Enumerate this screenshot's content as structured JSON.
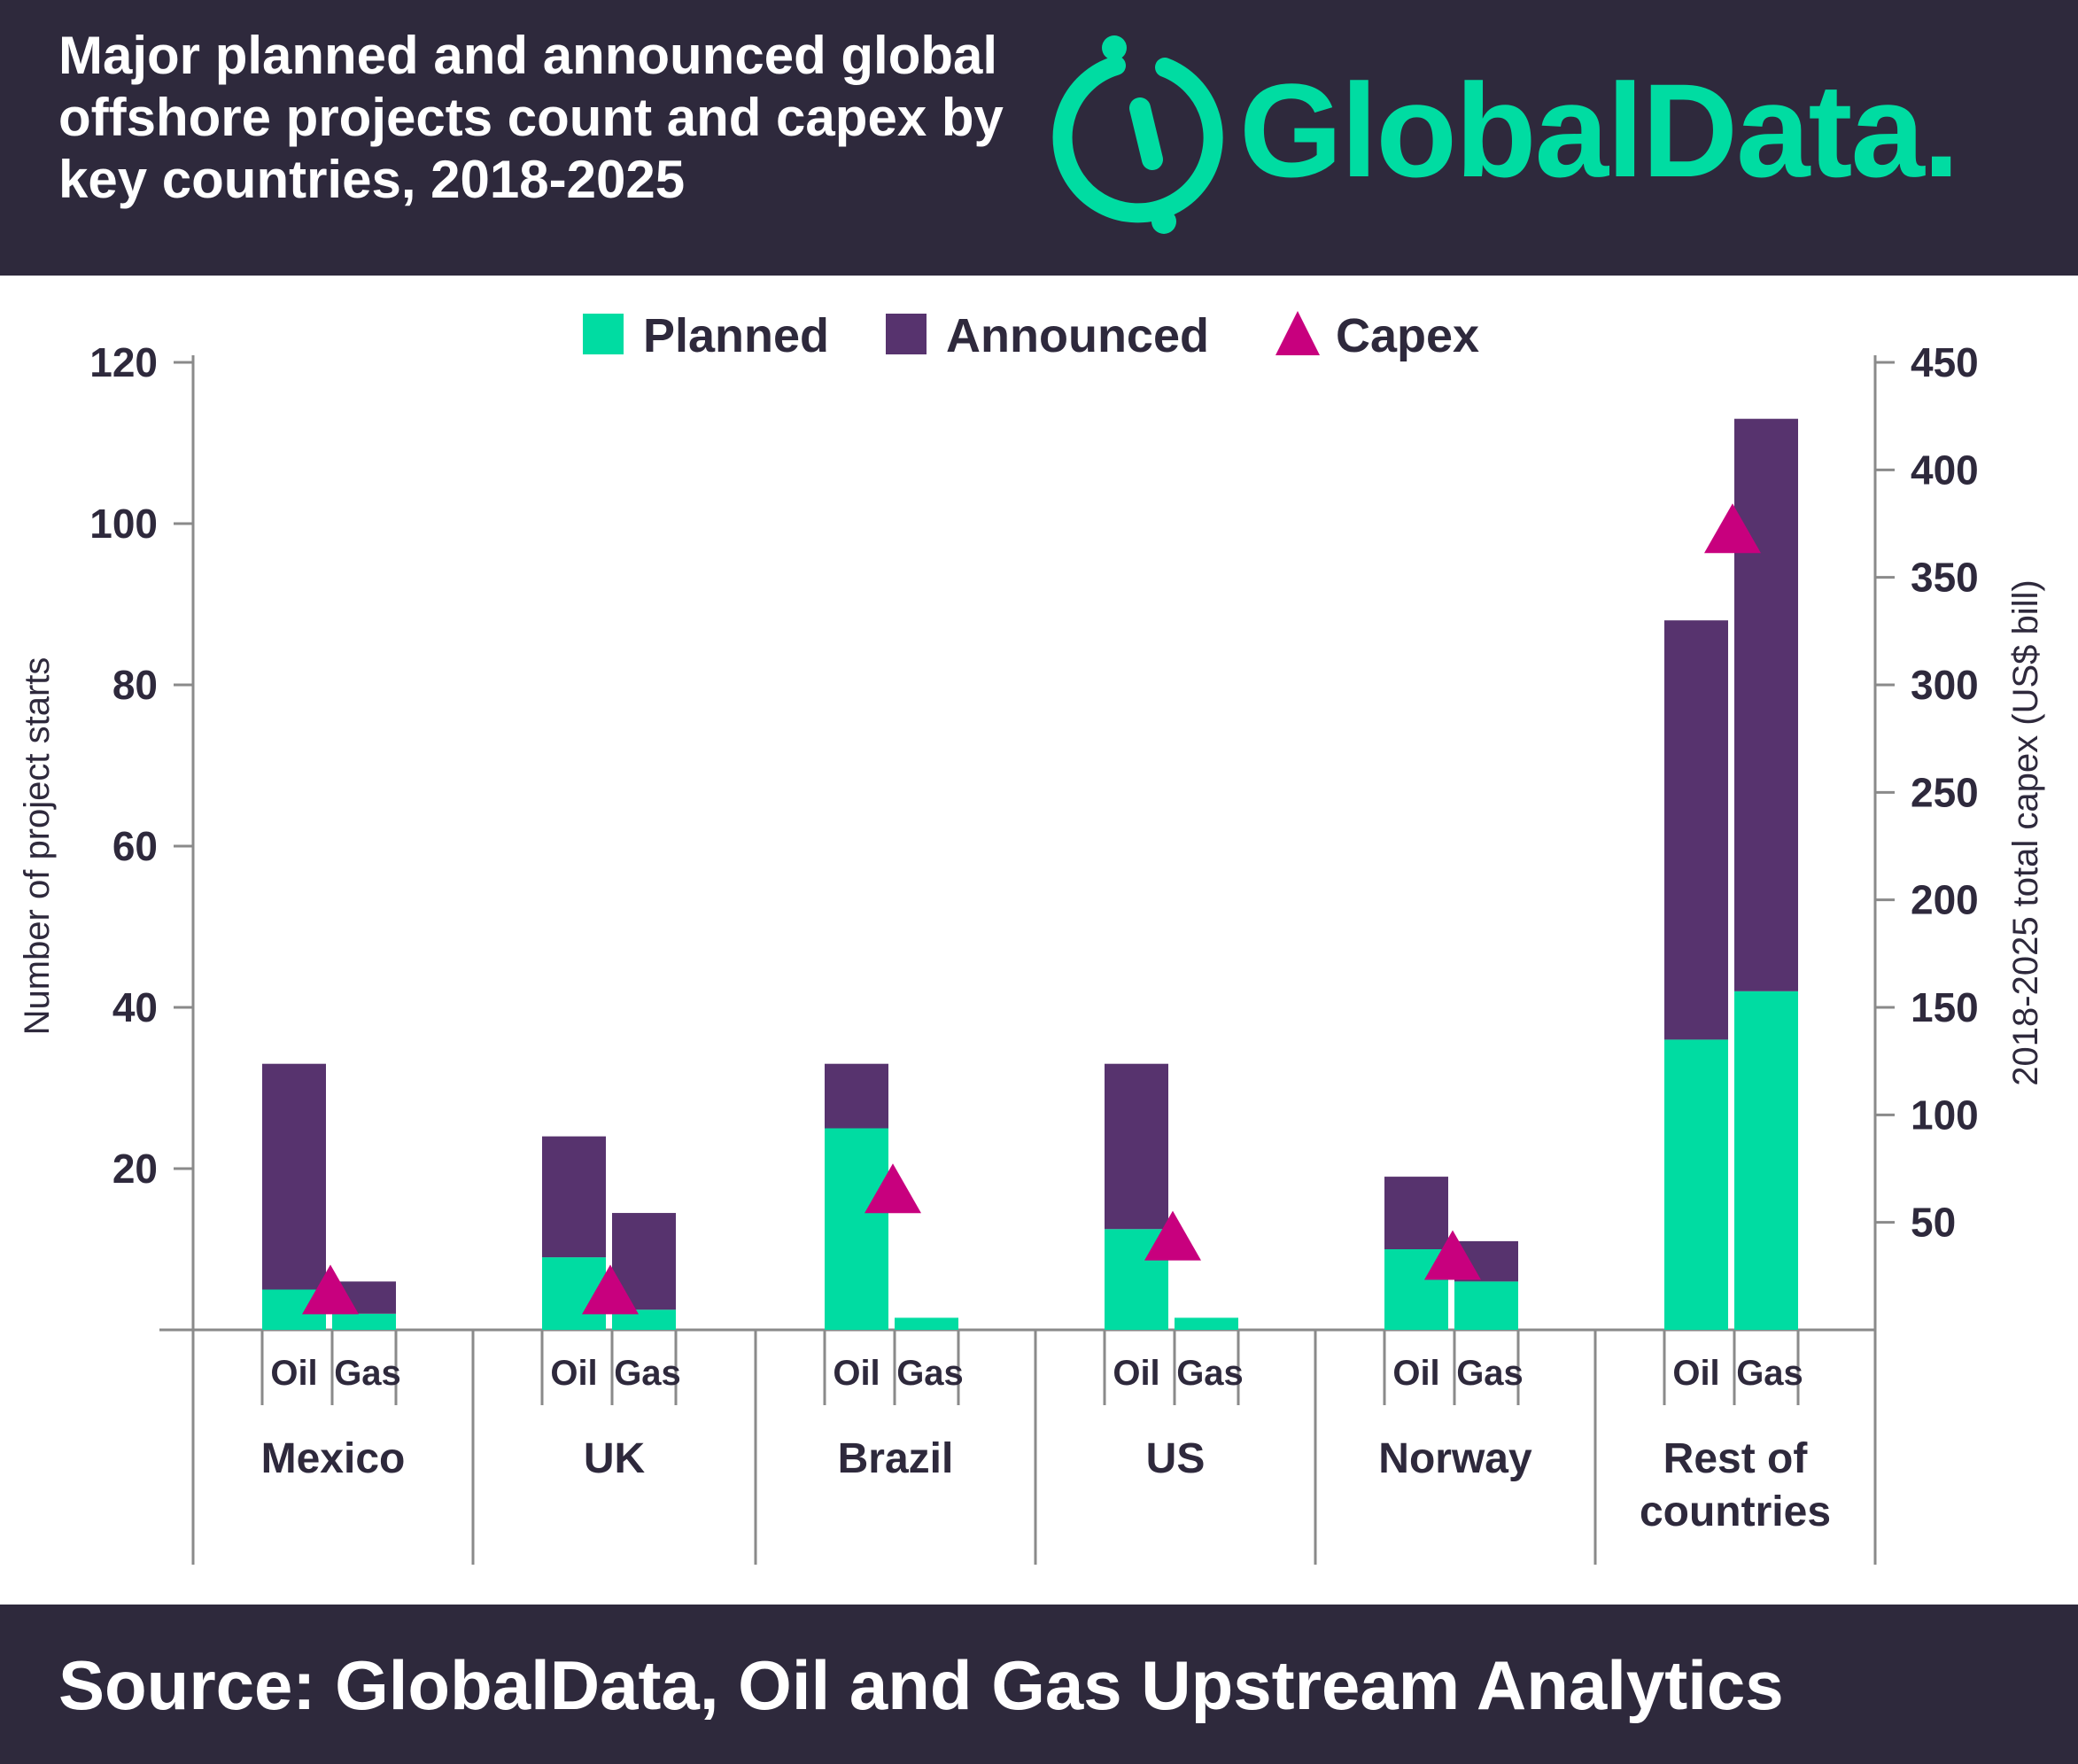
{
  "header": {
    "title": "Major planned and announced global offshore projects count and capex by key countries, 2018-2025"
  },
  "logo": {
    "text": "GlobalData."
  },
  "footer": {
    "source": "Source: GlobalData, Oil and Gas Upstream Analytics"
  },
  "colors": {
    "planned": "#00dca2",
    "announced": "#57336e",
    "capex": "#c8007e",
    "dark": "#2e293c",
    "axis": "#8a8a8a"
  },
  "chart_data": {
    "type": "bar",
    "stacked": true,
    "legend": [
      "Planned",
      "Announced",
      "Capex"
    ],
    "legend_position": "top-center",
    "ylabel_left": "Number of project starts",
    "ylabel_right": "2018-2025 total capex (US$ bill)",
    "ylim_left": [
      0,
      120
    ],
    "yticks_left": [
      20,
      40,
      60,
      80,
      100,
      120
    ],
    "ylim_right": [
      0,
      450
    ],
    "yticks_right": [
      50,
      100,
      150,
      200,
      250,
      300,
      350,
      400,
      450
    ],
    "sub_categories": [
      "Oil",
      "Gas"
    ],
    "groups": [
      {
        "country": [
          "Mexico"
        ],
        "oil": {
          "planned": 5,
          "announced": 28
        },
        "gas": {
          "planned": 2,
          "announced": 4
        },
        "capex": 18
      },
      {
        "country": [
          "UK"
        ],
        "oil": {
          "planned": 9,
          "announced": 15
        },
        "gas": {
          "planned": 2.5,
          "announced": 12
        },
        "capex": 18
      },
      {
        "country": [
          "Brazil"
        ],
        "oil": {
          "planned": 25,
          "announced": 8
        },
        "gas": {
          "planned": 1.5,
          "announced": 0
        },
        "capex": 65
      },
      {
        "country": [
          "US"
        ],
        "oil": {
          "planned": 12.5,
          "announced": 20.5
        },
        "gas": {
          "planned": 1.5,
          "announced": 0
        },
        "capex": 43
      },
      {
        "country": [
          "Norway"
        ],
        "oil": {
          "planned": 10,
          "announced": 9
        },
        "gas": {
          "planned": 6,
          "announced": 5
        },
        "capex": 34
      },
      {
        "country": [
          "Rest of",
          "countries"
        ],
        "oil": {
          "planned": 36,
          "announced": 52
        },
        "gas": {
          "planned": 42,
          "announced": 71
        },
        "capex": 372
      }
    ]
  }
}
